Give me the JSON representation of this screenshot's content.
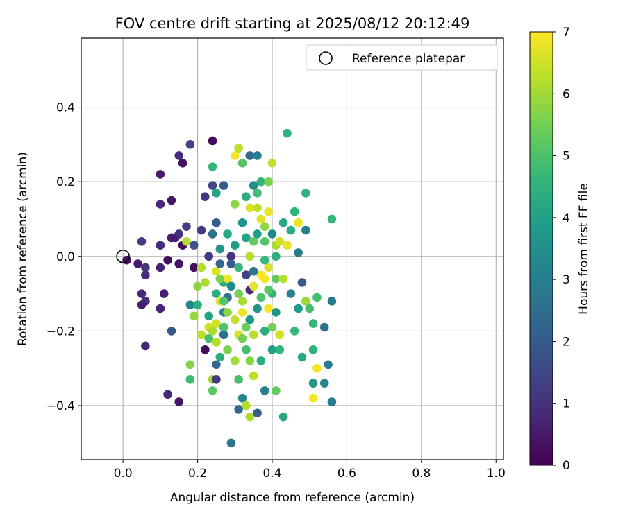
{
  "chart_data": {
    "type": "scatter",
    "title": "FOV centre drift starting at 2025/08/12 20:12:49",
    "xlabel": "Angular distance from reference (arcmin)",
    "ylabel": "Rotation from reference (arcmin)",
    "xlim": [
      -0.112,
      1.02
    ],
    "ylim": [
      -0.545,
      0.585
    ],
    "xticks": [
      0.0,
      0.2,
      0.4,
      0.6,
      0.8,
      1.0
    ],
    "xtick_labels": [
      "0.0",
      "0.2",
      "0.4",
      "0.6",
      "0.8",
      "1.0"
    ],
    "yticks": [
      -0.4,
      -0.2,
      0.0,
      0.2,
      0.4
    ],
    "ytick_labels": [
      "−0.4",
      "−0.2",
      "0.0",
      "0.2",
      "0.4"
    ],
    "grid": true,
    "legend": {
      "placement": "top-right",
      "entries": [
        {
          "label": "Reference platepar",
          "marker": "open-circle"
        }
      ]
    },
    "reference_point": {
      "x": 0.0,
      "y": 0.0
    },
    "colorbar": {
      "label": "Hours from first FF file",
      "colormap": "viridis",
      "range": [
        0,
        7
      ],
      "ticks": [
        0,
        1,
        2,
        3,
        4,
        5,
        6,
        7
      ],
      "tick_labels": [
        "0",
        "1",
        "2",
        "3",
        "4",
        "5",
        "6",
        "7"
      ],
      "stops": [
        "#440154",
        "#482878",
        "#3e4989",
        "#31688e",
        "#26828e",
        "#1f9e89",
        "#35b779",
        "#6ece58",
        "#b5de2b",
        "#fde725"
      ]
    },
    "points": [
      {
        "x": 0.01,
        "y": -0.01,
        "h": 0.3
      },
      {
        "x": 0.04,
        "y": -0.02,
        "h": 0.5
      },
      {
        "x": 0.05,
        "y": 0.04,
        "h": 1.2
      },
      {
        "x": 0.06,
        "y": -0.03,
        "h": 1.1
      },
      {
        "x": 0.06,
        "y": -0.05,
        "h": 0.9
      },
      {
        "x": 0.05,
        "y": -0.1,
        "h": 0.8
      },
      {
        "x": 0.06,
        "y": -0.12,
        "h": 0.9
      },
      {
        "x": 0.05,
        "y": -0.13,
        "h": 0.5
      },
      {
        "x": 0.06,
        "y": -0.24,
        "h": 0.7
      },
      {
        "x": 0.1,
        "y": 0.22,
        "h": 0.5
      },
      {
        "x": 0.1,
        "y": 0.14,
        "h": 0.8
      },
      {
        "x": 0.1,
        "y": 0.03,
        "h": 0.9
      },
      {
        "x": 0.1,
        "y": -0.03,
        "h": 0.7
      },
      {
        "x": 0.11,
        "y": -0.1,
        "h": 0.6
      },
      {
        "x": 0.1,
        "y": -0.14,
        "h": 0.7
      },
      {
        "x": 0.12,
        "y": -0.01,
        "h": 0.3
      },
      {
        "x": 0.13,
        "y": 0.15,
        "h": 0.4
      },
      {
        "x": 0.13,
        "y": 0.05,
        "h": 0.6
      },
      {
        "x": 0.14,
        "y": 0.05,
        "h": 0.5
      },
      {
        "x": 0.15,
        "y": 0.06,
        "h": 1.0
      },
      {
        "x": 0.15,
        "y": 0.27,
        "h": 0.9
      },
      {
        "x": 0.16,
        "y": 0.25,
        "h": 0.3
      },
      {
        "x": 0.16,
        "y": 0.03,
        "h": 0.2
      },
      {
        "x": 0.17,
        "y": 0.04,
        "h": 6.2
      },
      {
        "x": 0.17,
        "y": 0.08,
        "h": 1.3
      },
      {
        "x": 0.15,
        "y": -0.02,
        "h": 0.4
      },
      {
        "x": 0.13,
        "y": -0.2,
        "h": 1.9
      },
      {
        "x": 0.12,
        "y": -0.37,
        "h": 0.8
      },
      {
        "x": 0.15,
        "y": -0.39,
        "h": 0.4
      },
      {
        "x": 0.18,
        "y": 0.3,
        "h": 1.5
      },
      {
        "x": 0.19,
        "y": 0.03,
        "h": 1.8
      },
      {
        "x": 0.19,
        "y": -0.03,
        "h": 0.3
      },
      {
        "x": 0.18,
        "y": -0.13,
        "h": 3.2
      },
      {
        "x": 0.19,
        "y": -0.16,
        "h": 5.9
      },
      {
        "x": 0.18,
        "y": -0.29,
        "h": 5.7
      },
      {
        "x": 0.18,
        "y": -0.33,
        "h": 4.8
      },
      {
        "x": 0.21,
        "y": 0.07,
        "h": 1.2
      },
      {
        "x": 0.21,
        "y": -0.03,
        "h": 6.2
      },
      {
        "x": 0.2,
        "y": -0.08,
        "h": 5.8
      },
      {
        "x": 0.2,
        "y": -0.13,
        "h": 4.4
      },
      {
        "x": 0.21,
        "y": -0.21,
        "h": 6.3
      },
      {
        "x": 0.22,
        "y": -0.25,
        "h": 0.2
      },
      {
        "x": 0.22,
        "y": 0.16,
        "h": 1.1
      },
      {
        "x": 0.23,
        "y": 0.0,
        "h": 1.2
      },
      {
        "x": 0.23,
        "y": -0.19,
        "h": 6.5
      },
      {
        "x": 0.23,
        "y": -0.22,
        "h": 4.9
      },
      {
        "x": 0.24,
        "y": 0.31,
        "h": 0.2
      },
      {
        "x": 0.24,
        "y": 0.24,
        "h": 4.6
      },
      {
        "x": 0.24,
        "y": 0.19,
        "h": 1.5
      },
      {
        "x": 0.24,
        "y": -0.2,
        "h": 6.1
      },
      {
        "x": 0.24,
        "y": -0.33,
        "h": 6.0
      },
      {
        "x": 0.24,
        "y": -0.36,
        "h": 5.2
      },
      {
        "x": 0.25,
        "y": 0.17,
        "h": 4.1
      },
      {
        "x": 0.25,
        "y": 0.09,
        "h": 2.0
      },
      {
        "x": 0.25,
        "y": -0.04,
        "h": 6.6
      },
      {
        "x": 0.25,
        "y": -0.1,
        "h": 4.4
      },
      {
        "x": 0.25,
        "y": -0.18,
        "h": 6.5
      },
      {
        "x": 0.25,
        "y": -0.29,
        "h": 2.3
      },
      {
        "x": 0.25,
        "y": -0.33,
        "h": 1.2
      },
      {
        "x": 0.26,
        "y": 0.02,
        "h": 3.6
      },
      {
        "x": 0.26,
        "y": -0.02,
        "h": 2.3
      },
      {
        "x": 0.26,
        "y": -0.12,
        "h": 6.7
      },
      {
        "x": 0.27,
        "y": 0.19,
        "h": 2.0
      },
      {
        "x": 0.27,
        "y": -0.07,
        "h": 4.3
      },
      {
        "x": 0.27,
        "y": -0.15,
        "h": 3.1
      },
      {
        "x": 0.27,
        "y": -0.21,
        "h": 2.6
      },
      {
        "x": 0.28,
        "y": 0.06,
        "h": 4.2
      },
      {
        "x": 0.28,
        "y": -0.06,
        "h": 6.8
      },
      {
        "x": 0.28,
        "y": -0.11,
        "h": 2.5
      },
      {
        "x": 0.28,
        "y": -0.15,
        "h": 5.8
      },
      {
        "x": 0.29,
        "y": 0.0,
        "h": 1.0
      },
      {
        "x": 0.29,
        "y": -0.5,
        "h": 2.7
      },
      {
        "x": 0.3,
        "y": 0.27,
        "h": 6.9
      },
      {
        "x": 0.3,
        "y": -0.28,
        "h": 6.0
      },
      {
        "x": 0.31,
        "y": 0.29,
        "h": 6.3
      },
      {
        "x": 0.31,
        "y": -0.1,
        "h": 5.5
      },
      {
        "x": 0.31,
        "y": -0.21,
        "h": 6.6
      },
      {
        "x": 0.31,
        "y": -0.33,
        "h": 4.9
      },
      {
        "x": 0.31,
        "y": -0.41,
        "h": 2.3
      },
      {
        "x": 0.32,
        "y": 0.25,
        "h": 5.1
      },
      {
        "x": 0.32,
        "y": 0.09,
        "h": 3.5
      },
      {
        "x": 0.32,
        "y": -0.15,
        "h": 6.8
      },
      {
        "x": 0.32,
        "y": -0.38,
        "h": 3.2
      },
      {
        "x": 0.33,
        "y": 0.05,
        "h": 4.1
      },
      {
        "x": 0.33,
        "y": -0.05,
        "h": 1.4
      },
      {
        "x": 0.33,
        "y": -0.19,
        "h": 5.4
      },
      {
        "x": 0.34,
        "y": 0.27,
        "h": 2.4
      },
      {
        "x": 0.34,
        "y": 0.13,
        "h": 6.6
      },
      {
        "x": 0.34,
        "y": 0.0,
        "h": 6.2
      },
      {
        "x": 0.34,
        "y": -0.09,
        "h": 0.9
      },
      {
        "x": 0.34,
        "y": -0.43,
        "h": 6.1
      },
      {
        "x": 0.35,
        "y": 0.19,
        "h": 3.4
      },
      {
        "x": 0.35,
        "y": 0.04,
        "h": 5.3
      },
      {
        "x": 0.35,
        "y": -0.08,
        "h": 6.7
      },
      {
        "x": 0.35,
        "y": -0.21,
        "h": 6.2
      },
      {
        "x": 0.35,
        "y": -0.32,
        "h": 6.3
      },
      {
        "x": 0.36,
        "y": 0.27,
        "h": 3.0
      },
      {
        "x": 0.36,
        "y": 0.17,
        "h": 4.8
      },
      {
        "x": 0.36,
        "y": -0.14,
        "h": 3.6
      },
      {
        "x": 0.36,
        "y": -0.42,
        "h": 2.1
      },
      {
        "x": 0.37,
        "y": 0.2,
        "h": 4.6
      },
      {
        "x": 0.37,
        "y": 0.1,
        "h": 6.7
      },
      {
        "x": 0.37,
        "y": -0.05,
        "h": 7.0
      },
      {
        "x": 0.37,
        "y": -0.28,
        "h": 4.4
      },
      {
        "x": 0.38,
        "y": 0.08,
        "h": 5.8
      },
      {
        "x": 0.38,
        "y": -0.06,
        "h": 6.9
      },
      {
        "x": 0.38,
        "y": -0.2,
        "h": 4.3
      },
      {
        "x": 0.38,
        "y": -0.36,
        "h": 2.9
      },
      {
        "x": 0.39,
        "y": 0.2,
        "h": 5.6
      },
      {
        "x": 0.39,
        "y": 0.12,
        "h": 6.8
      },
      {
        "x": 0.39,
        "y": -0.03,
        "h": 6.6
      },
      {
        "x": 0.39,
        "y": -0.14,
        "h": 6.9
      },
      {
        "x": 0.4,
        "y": 0.25,
        "h": 6.4
      },
      {
        "x": 0.4,
        "y": 0.06,
        "h": 3.3
      },
      {
        "x": 0.4,
        "y": -0.1,
        "h": 4.6
      },
      {
        "x": 0.4,
        "y": -0.25,
        "h": 3.9
      },
      {
        "x": 0.41,
        "y": 0.03,
        "h": 6.1
      },
      {
        "x": 0.41,
        "y": -0.06,
        "h": 5.3
      },
      {
        "x": 0.41,
        "y": -0.15,
        "h": 3.6
      },
      {
        "x": 0.41,
        "y": -0.36,
        "h": 5.3
      },
      {
        "x": 0.42,
        "y": 0.04,
        "h": 6.5
      },
      {
        "x": 0.42,
        "y": -0.21,
        "h": 6.5
      },
      {
        "x": 0.42,
        "y": -0.25,
        "h": 4.6
      },
      {
        "x": 0.43,
        "y": 0.09,
        "h": 4.2
      },
      {
        "x": 0.43,
        "y": -0.06,
        "h": 6.2
      },
      {
        "x": 0.43,
        "y": -0.43,
        "h": 4.2
      },
      {
        "x": 0.44,
        "y": 0.33,
        "h": 4.5
      },
      {
        "x": 0.44,
        "y": 0.03,
        "h": 6.8
      },
      {
        "x": 0.45,
        "y": 0.07,
        "h": 4.3
      },
      {
        "x": 0.45,
        "y": -0.1,
        "h": 3.1
      },
      {
        "x": 0.46,
        "y": 0.12,
        "h": 4.5
      },
      {
        "x": 0.46,
        "y": -0.2,
        "h": 4.7
      },
      {
        "x": 0.47,
        "y": 0.01,
        "h": 2.9
      },
      {
        "x": 0.47,
        "y": 0.09,
        "h": 6.8
      },
      {
        "x": 0.47,
        "y": -0.14,
        "h": 3.8
      },
      {
        "x": 0.48,
        "y": -0.07,
        "h": 2.0
      },
      {
        "x": 0.48,
        "y": -0.27,
        "h": 4.2
      },
      {
        "x": 0.49,
        "y": 0.17,
        "h": 4.5
      },
      {
        "x": 0.49,
        "y": 0.07,
        "h": 3.0
      },
      {
        "x": 0.49,
        "y": -0.12,
        "h": 5.9
      },
      {
        "x": 0.5,
        "y": -0.14,
        "h": 4.9
      },
      {
        "x": 0.51,
        "y": -0.18,
        "h": 4.7
      },
      {
        "x": 0.51,
        "y": -0.25,
        "h": 4.5
      },
      {
        "x": 0.51,
        "y": -0.34,
        "h": 3.7
      },
      {
        "x": 0.51,
        "y": -0.38,
        "h": 6.9
      },
      {
        "x": 0.52,
        "y": -0.11,
        "h": 4.9
      },
      {
        "x": 0.52,
        "y": -0.3,
        "h": 6.9
      },
      {
        "x": 0.54,
        "y": -0.19,
        "h": 2.6
      },
      {
        "x": 0.54,
        "y": -0.34,
        "h": 3.2
      },
      {
        "x": 0.55,
        "y": -0.29,
        "h": 2.9
      },
      {
        "x": 0.56,
        "y": 0.1,
        "h": 4.6
      },
      {
        "x": 0.56,
        "y": -0.39,
        "h": 2.9
      },
      {
        "x": 0.56,
        "y": -0.12,
        "h": 2.8
      },
      {
        "x": 0.29,
        "y": -0.02,
        "h": 2.0
      },
      {
        "x": 0.3,
        "y": 0.03,
        "h": 3.9
      },
      {
        "x": 0.31,
        "y": -0.03,
        "h": 4.7
      },
      {
        "x": 0.32,
        "y": -0.12,
        "h": 6.1
      },
      {
        "x": 0.33,
        "y": -0.25,
        "h": 4.9
      },
      {
        "x": 0.34,
        "y": -0.17,
        "h": 3.7
      },
      {
        "x": 0.35,
        "y": -0.04,
        "h": 2.8
      },
      {
        "x": 0.36,
        "y": 0.06,
        "h": 3.9
      },
      {
        "x": 0.37,
        "y": -0.11,
        "h": 5.0
      },
      {
        "x": 0.38,
        "y": -0.01,
        "h": 4.7
      },
      {
        "x": 0.39,
        "y": -0.09,
        "h": 5.2
      },
      {
        "x": 0.4,
        "y": -0.19,
        "h": 5.5
      },
      {
        "x": 0.41,
        "y": 0.0,
        "h": 4.4
      },
      {
        "x": 0.3,
        "y": -0.17,
        "h": 6.4
      },
      {
        "x": 0.28,
        "y": -0.25,
        "h": 5.6
      },
      {
        "x": 0.27,
        "y": -0.19,
        "h": 5.0
      },
      {
        "x": 0.26,
        "y": -0.27,
        "h": 4.4
      },
      {
        "x": 0.25,
        "y": -0.23,
        "h": 6.2
      },
      {
        "x": 0.23,
        "y": -0.16,
        "h": 4.0
      },
      {
        "x": 0.22,
        "y": -0.07,
        "h": 6.1
      },
      {
        "x": 0.24,
        "y": 0.06,
        "h": 2.6
      },
      {
        "x": 0.3,
        "y": 0.14,
        "h": 5.8
      },
      {
        "x": 0.33,
        "y": 0.16,
        "h": 4.3
      },
      {
        "x": 0.36,
        "y": 0.13,
        "h": 6.3
      },
      {
        "x": 0.38,
        "y": 0.04,
        "h": 5.1
      },
      {
        "x": 0.34,
        "y": -0.28,
        "h": 5.7
      },
      {
        "x": 0.33,
        "y": -0.4,
        "h": 6.2
      },
      {
        "x": 0.32,
        "y": -0.22,
        "h": 5.5
      },
      {
        "x": 0.29,
        "y": -0.08,
        "h": 3.3
      },
      {
        "x": 0.27,
        "y": -0.12,
        "h": 5.1
      },
      {
        "x": 0.26,
        "y": -0.06,
        "h": 5.6
      }
    ]
  }
}
